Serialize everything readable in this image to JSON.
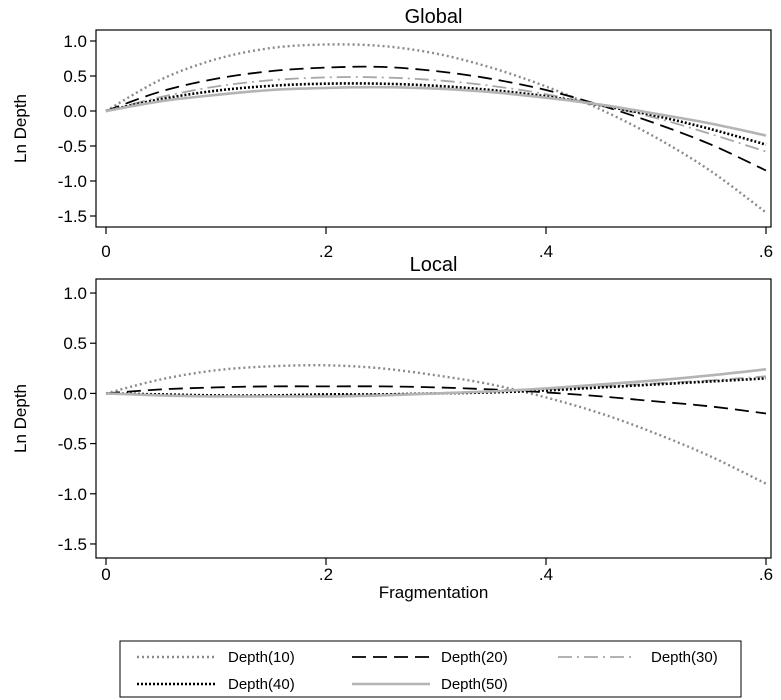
{
  "chart_data": {
    "type": "line",
    "panels": [
      {
        "title": "Global",
        "ylabel": "Ln Depth",
        "xlabel": "",
        "xlim": [
          0,
          0.6
        ],
        "ylim": [
          -1.6,
          1.1
        ],
        "xticks": [
          0,
          0.2,
          0.4,
          0.6
        ],
        "xtick_labels": [
          "0",
          ".2",
          ".4",
          ".6"
        ],
        "yticks": [
          1.0,
          0.5,
          0.0,
          -0.5,
          -1.0,
          -1.5
        ],
        "ytick_labels": [
          "1.0",
          "0.5",
          "0.0",
          "-0.5",
          "-1.0",
          "-1.5"
        ],
        "series": [
          {
            "name": "Depth(10)",
            "x": [
              0,
              0.05,
              0.1,
              0.15,
              0.2,
              0.25,
              0.3,
              0.35,
              0.4,
              0.45,
              0.5,
              0.55,
              0.6
            ],
            "y": [
              0,
              0.45,
              0.74,
              0.9,
              0.95,
              0.93,
              0.82,
              0.62,
              0.35,
              0.02,
              -0.38,
              -0.86,
              -1.45
            ]
          },
          {
            "name": "Depth(20)",
            "x": [
              0,
              0.05,
              0.1,
              0.15,
              0.2,
              0.25,
              0.3,
              0.35,
              0.4,
              0.45,
              0.5,
              0.55,
              0.6
            ],
            "y": [
              0,
              0.28,
              0.46,
              0.57,
              0.62,
              0.63,
              0.57,
              0.46,
              0.3,
              0.08,
              -0.18,
              -0.48,
              -0.85
            ]
          },
          {
            "name": "Depth(30)",
            "x": [
              0,
              0.05,
              0.1,
              0.15,
              0.2,
              0.25,
              0.3,
              0.35,
              0.4,
              0.45,
              0.5,
              0.55,
              0.6
            ],
            "y": [
              0,
              0.2,
              0.35,
              0.44,
              0.48,
              0.48,
              0.44,
              0.36,
              0.24,
              0.08,
              -0.1,
              -0.33,
              -0.58
            ]
          },
          {
            "name": "Depth(40)",
            "x": [
              0,
              0.05,
              0.1,
              0.15,
              0.2,
              0.25,
              0.3,
              0.35,
              0.4,
              0.45,
              0.5,
              0.55,
              0.6
            ],
            "y": [
              0,
              0.17,
              0.29,
              0.36,
              0.39,
              0.39,
              0.36,
              0.3,
              0.21,
              0.08,
              -0.07,
              -0.26,
              -0.48
            ]
          },
          {
            "name": "Depth(50)",
            "x": [
              0,
              0.05,
              0.1,
              0.15,
              0.2,
              0.25,
              0.3,
              0.35,
              0.4,
              0.45,
              0.5,
              0.55,
              0.6
            ],
            "y": [
              0,
              0.14,
              0.23,
              0.3,
              0.33,
              0.34,
              0.32,
              0.27,
              0.19,
              0.09,
              -0.04,
              -0.18,
              -0.35
            ]
          }
        ]
      },
      {
        "title": "Local",
        "ylabel": "Ln Depth",
        "xlabel": "Fragmentation",
        "xlim": [
          0,
          0.6
        ],
        "ylim": [
          -1.6,
          1.1
        ],
        "xticks": [
          0,
          0.2,
          0.4,
          0.6
        ],
        "xtick_labels": [
          "0",
          ".2",
          ".4",
          ".6"
        ],
        "yticks": [
          1.0,
          0.5,
          0.0,
          -0.5,
          -1.0,
          -1.5
        ],
        "ytick_labels": [
          "1.0",
          "0.5",
          "0.0",
          "-0.5",
          "-1.0",
          "-1.5"
        ],
        "series": [
          {
            "name": "Depth(10)",
            "x": [
              0,
              0.05,
              0.1,
              0.15,
              0.2,
              0.25,
              0.3,
              0.35,
              0.4,
              0.45,
              0.5,
              0.55,
              0.6
            ],
            "y": [
              0,
              0.14,
              0.23,
              0.27,
              0.28,
              0.25,
              0.18,
              0.09,
              -0.04,
              -0.2,
              -0.4,
              -0.63,
              -0.9
            ]
          },
          {
            "name": "Depth(20)",
            "x": [
              0,
              0.05,
              0.1,
              0.15,
              0.2,
              0.25,
              0.3,
              0.35,
              0.4,
              0.45,
              0.5,
              0.55,
              0.6
            ],
            "y": [
              0,
              0.04,
              0.06,
              0.07,
              0.07,
              0.07,
              0.06,
              0.04,
              0.01,
              -0.03,
              -0.08,
              -0.13,
              -0.2
            ]
          },
          {
            "name": "Depth(30)",
            "x": [
              0,
              0.05,
              0.1,
              0.15,
              0.2,
              0.25,
              0.3,
              0.35,
              0.4,
              0.45,
              0.5,
              0.55,
              0.6
            ],
            "y": [
              0,
              -0.02,
              -0.03,
              -0.03,
              -0.02,
              -0.01,
              0.0,
              0.02,
              0.04,
              0.07,
              0.1,
              0.13,
              0.17
            ]
          },
          {
            "name": "Depth(40)",
            "x": [
              0,
              0.05,
              0.1,
              0.15,
              0.2,
              0.25,
              0.3,
              0.35,
              0.4,
              0.45,
              0.5,
              0.55,
              0.6
            ],
            "y": [
              0,
              -0.01,
              -0.02,
              -0.02,
              -0.01,
              -0.01,
              0.0,
              0.01,
              0.03,
              0.06,
              0.09,
              0.12,
              0.15
            ]
          },
          {
            "name": "Depth(50)",
            "x": [
              0,
              0.05,
              0.1,
              0.15,
              0.2,
              0.25,
              0.3,
              0.35,
              0.4,
              0.45,
              0.5,
              0.55,
              0.6
            ],
            "y": [
              0,
              -0.02,
              -0.03,
              -0.03,
              -0.03,
              -0.02,
              0.0,
              0.02,
              0.05,
              0.09,
              0.13,
              0.18,
              0.24
            ]
          }
        ]
      }
    ],
    "legend": {
      "position": "bottom",
      "entries": [
        "Depth(10)",
        "Depth(20)",
        "Depth(30)",
        "Depth(40)",
        "Depth(50)"
      ]
    },
    "grid": false
  },
  "styles": {
    "Depth(10)": {
      "color": "#8a8a8a",
      "dash": "2,3",
      "width": 2.4
    },
    "Depth(20)": {
      "color": "#000000",
      "dash": "14,7",
      "width": 1.8
    },
    "Depth(30)": {
      "color": "#a8a8a8",
      "dash": "14,5,2,5",
      "width": 1.8
    },
    "Depth(40)": {
      "color": "#000000",
      "dash": "2,2",
      "width": 2.6
    },
    "Depth(50)": {
      "color": "#b4b4b4",
      "dash": "",
      "width": 2.6
    }
  }
}
